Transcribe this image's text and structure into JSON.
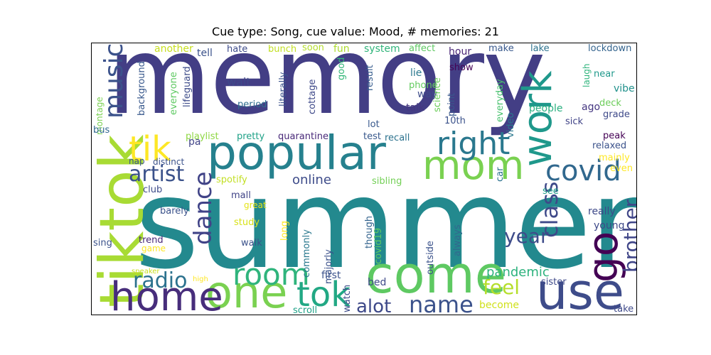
{
  "figure": {
    "title": "Cue type: Song, cue value: Mood, # memories: 21"
  },
  "words": [
    {
      "text": "memory",
      "color": "#433e85"
    },
    {
      "text": "summer",
      "color": "#23898e"
    },
    {
      "text": "popular",
      "color": "#26818e"
    },
    {
      "text": "tiktok",
      "color": "#a8db34"
    },
    {
      "text": "come",
      "color": "#5ec962"
    },
    {
      "text": "use",
      "color": "#3e4c8a"
    },
    {
      "text": "one",
      "color": "#7ad151"
    },
    {
      "text": "home",
      "color": "#472d7b"
    },
    {
      "text": "mom",
      "color": "#7ad151"
    },
    {
      "text": "go",
      "color": "#440154"
    },
    {
      "text": "work",
      "color": "#1f988b"
    },
    {
      "text": "right",
      "color": "#2a788e"
    },
    {
      "text": "tik",
      "color": "#fde725"
    },
    {
      "text": "tok",
      "color": "#22a884"
    },
    {
      "text": "covid",
      "color": "#31688e"
    },
    {
      "text": "music",
      "color": "#3b528b"
    },
    {
      "text": "room",
      "color": "#2fb47c"
    },
    {
      "text": "dance",
      "color": "#404387"
    },
    {
      "text": "class",
      "color": "#3e4989"
    },
    {
      "text": "artist",
      "color": "#3b528b"
    },
    {
      "text": "name",
      "color": "#3b528b"
    },
    {
      "text": "radio",
      "color": "#2c728e"
    },
    {
      "text": "brother",
      "color": "#404688"
    },
    {
      "text": "year",
      "color": "#3e4c8a"
    },
    {
      "text": "feel",
      "color": "#b5de2b"
    },
    {
      "text": "alot",
      "color": "#3e4989"
    },
    {
      "text": "pandemic",
      "color": "#2db27d"
    },
    {
      "text": "online",
      "color": "#3e4c8a"
    },
    {
      "text": "another",
      "color": "#c8e020"
    },
    {
      "text": "tell",
      "color": "#3b528b"
    },
    {
      "text": "hate",
      "color": "#3e4c8a"
    },
    {
      "text": "bunch",
      "color": "#c2df23"
    },
    {
      "text": "soon",
      "color": "#b5de2b"
    },
    {
      "text": "fun",
      "color": "#addc30"
    },
    {
      "text": "system",
      "color": "#31b57b"
    },
    {
      "text": "affect",
      "color": "#5ec962"
    },
    {
      "text": "hour",
      "color": "#482475"
    },
    {
      "text": "make",
      "color": "#38588c"
    },
    {
      "text": "lake",
      "color": "#2c728e"
    },
    {
      "text": "lockdown",
      "color": "#33638d"
    },
    {
      "text": "wait",
      "color": "#3e4989"
    },
    {
      "text": "background",
      "color": "#38588c"
    },
    {
      "text": "everyone",
      "color": "#5ec962"
    },
    {
      "text": "lifeguard",
      "color": "#3e4c8a"
    },
    {
      "text": "period",
      "color": "#2f6c8e"
    },
    {
      "text": "literally",
      "color": "#3b528b"
    },
    {
      "text": "cottage",
      "color": "#3e4989"
    },
    {
      "text": "good",
      "color": "#35b779"
    },
    {
      "text": "result",
      "color": "#365c8d"
    },
    {
      "text": "lie",
      "color": "#2a788e"
    },
    {
      "text": "way",
      "color": "#3e4c8a"
    },
    {
      "text": "phone",
      "color": "#63cb5f"
    },
    {
      "text": "talk",
      "color": "#453781"
    },
    {
      "text": "point",
      "color": "#38588c"
    },
    {
      "text": "science",
      "color": "#6ccd5a"
    },
    {
      "text": "show",
      "color": "#440154"
    },
    {
      "text": "everyday",
      "color": "#48c16e"
    },
    {
      "text": "video",
      "color": "#2a788e"
    },
    {
      "text": "10th",
      "color": "#3b528b"
    },
    {
      "text": "lot",
      "color": "#38588c"
    },
    {
      "text": "laugh",
      "color": "#2fb47c"
    },
    {
      "text": "ago",
      "color": "#453781"
    },
    {
      "text": "near",
      "color": "#1f988b"
    },
    {
      "text": "vibe",
      "color": "#21918c"
    },
    {
      "text": "deck",
      "color": "#6ccd5a"
    },
    {
      "text": "grade",
      "color": "#3e4989"
    },
    {
      "text": "peak",
      "color": "#440154"
    },
    {
      "text": "relaxed",
      "color": "#3b528b"
    },
    {
      "text": "mainly",
      "color": "#fde725"
    },
    {
      "text": "even",
      "color": "#fde725"
    },
    {
      "text": "sick",
      "color": "#404387"
    },
    {
      "text": "people",
      "color": "#29af7f"
    },
    {
      "text": "montage",
      "color": "#7ad151"
    },
    {
      "text": "bus",
      "color": "#31688e"
    },
    {
      "text": "pa",
      "color": "#414487"
    },
    {
      "text": "playlist",
      "color": "#8fd744"
    },
    {
      "text": "pretty",
      "color": "#1fa187"
    },
    {
      "text": "quarantine",
      "color": "#482878"
    },
    {
      "text": "test",
      "color": "#38588c"
    },
    {
      "text": "recall",
      "color": "#2c728e"
    },
    {
      "text": "nap",
      "color": "#3b528b"
    },
    {
      "text": "distinct",
      "color": "#3b528b"
    },
    {
      "text": "spotify",
      "color": "#c2df23"
    },
    {
      "text": "mall",
      "color": "#404387"
    },
    {
      "text": "great",
      "color": "#e5e419"
    },
    {
      "text": "study",
      "color": "#d8e219"
    },
    {
      "text": "walk",
      "color": "#3b528b"
    },
    {
      "text": "club",
      "color": "#3e4c8a"
    },
    {
      "text": "barely",
      "color": "#3b528b"
    },
    {
      "text": "trend",
      "color": "#482878"
    },
    {
      "text": "game",
      "color": "#fde725"
    },
    {
      "text": "sing",
      "color": "#3b528b"
    },
    {
      "text": "speaker",
      "color": "#c8e020"
    },
    {
      "text": "high",
      "color": "#fde725"
    },
    {
      "text": "sibling",
      "color": "#73d056"
    },
    {
      "text": "long",
      "color": "#fde725"
    },
    {
      "text": "commonly",
      "color": "#2a788e"
    },
    {
      "text": "majorly",
      "color": "#3b528b"
    },
    {
      "text": "though",
      "color": "#33638d"
    },
    {
      "text": "covid19",
      "color": "#5ec962"
    },
    {
      "text": "outside",
      "color": "#3b528b"
    },
    {
      "text": "always",
      "color": "#31688e"
    },
    {
      "text": "car",
      "color": "#2c728e"
    },
    {
      "text": "see",
      "color": "#1f9e89"
    },
    {
      "text": "really",
      "color": "#3e4989"
    },
    {
      "text": "young",
      "color": "#3e4989"
    },
    {
      "text": "first",
      "color": "#3b528b"
    },
    {
      "text": "watch",
      "color": "#3e4c8a"
    },
    {
      "text": "bed",
      "color": "#3e4989"
    },
    {
      "text": "sister",
      "color": "#3e4989"
    },
    {
      "text": "become",
      "color": "#d0e11c"
    },
    {
      "text": "scroll",
      "color": "#1fa187"
    },
    {
      "text": "take",
      "color": "#3e4989"
    }
  ]
}
